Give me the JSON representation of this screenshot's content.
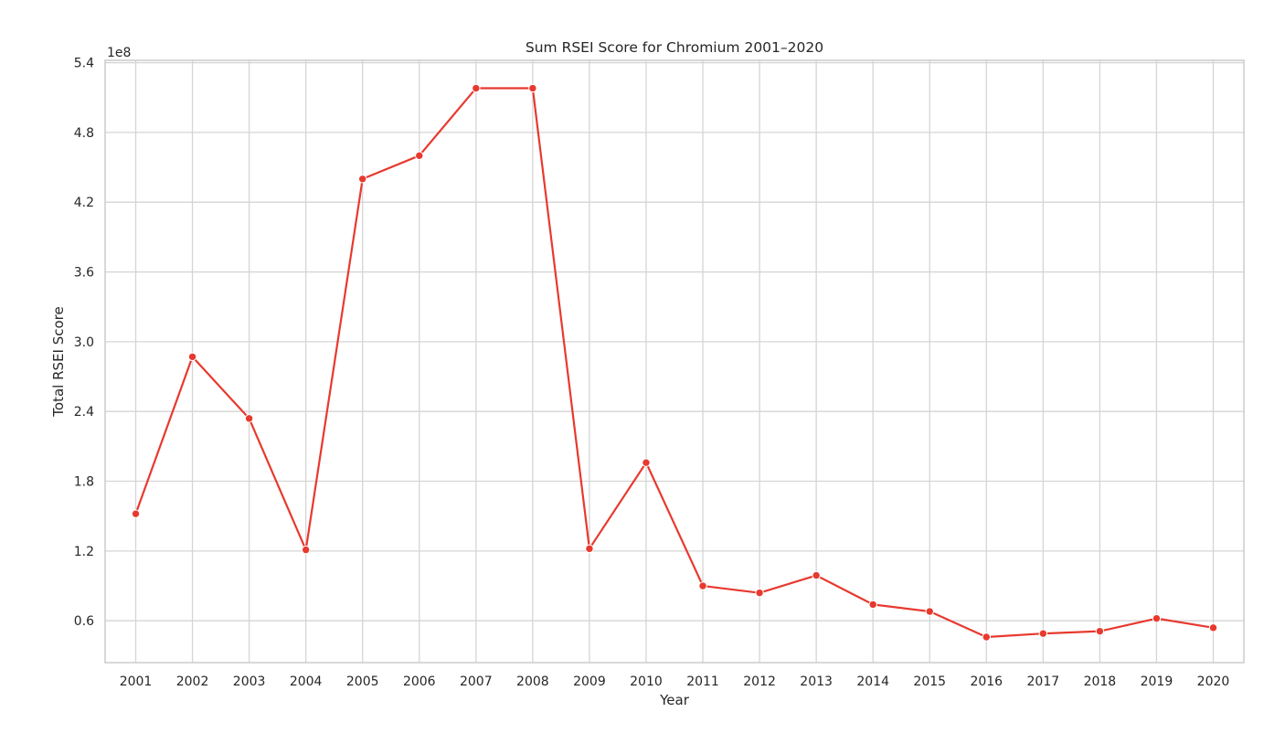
{
  "chart_data": {
    "type": "line",
    "title": "Sum RSEI Score for Chromium 2001–2020",
    "xlabel": "Year",
    "ylabel": "Total RSEI Score",
    "y_offset_text": "1e8",
    "categories": [
      "2001",
      "2002",
      "2003",
      "2004",
      "2005",
      "2006",
      "2007",
      "2008",
      "2009",
      "2010",
      "2011",
      "2012",
      "2013",
      "2014",
      "2015",
      "2016",
      "2017",
      "2018",
      "2019",
      "2020"
    ],
    "series": [
      {
        "values": [
          1.52,
          2.87,
          2.34,
          1.21,
          4.4,
          4.6,
          5.18,
          5.18,
          1.22,
          1.96,
          0.9,
          0.84,
          0.99,
          0.74,
          0.68,
          0.46,
          0.49,
          0.51,
          0.62,
          0.54
        ]
      }
    ],
    "value_unit_multiplier": 100000000,
    "ylim": [
      0.24,
      5.42
    ],
    "yticks": [
      0.6,
      1.2,
      1.8,
      2.4,
      3.0,
      3.6,
      4.2,
      4.8,
      5.4
    ],
    "ytick_labels": [
      "0.6",
      "1.2",
      "1.8",
      "2.4",
      "3.0",
      "3.6",
      "4.2",
      "4.8",
      "5.4"
    ],
    "grid": true,
    "legend": "none",
    "colors": {
      "line": "#e8392e",
      "grid": "#d5d5d5",
      "frame": "#cccccc",
      "text": "#262626"
    }
  }
}
